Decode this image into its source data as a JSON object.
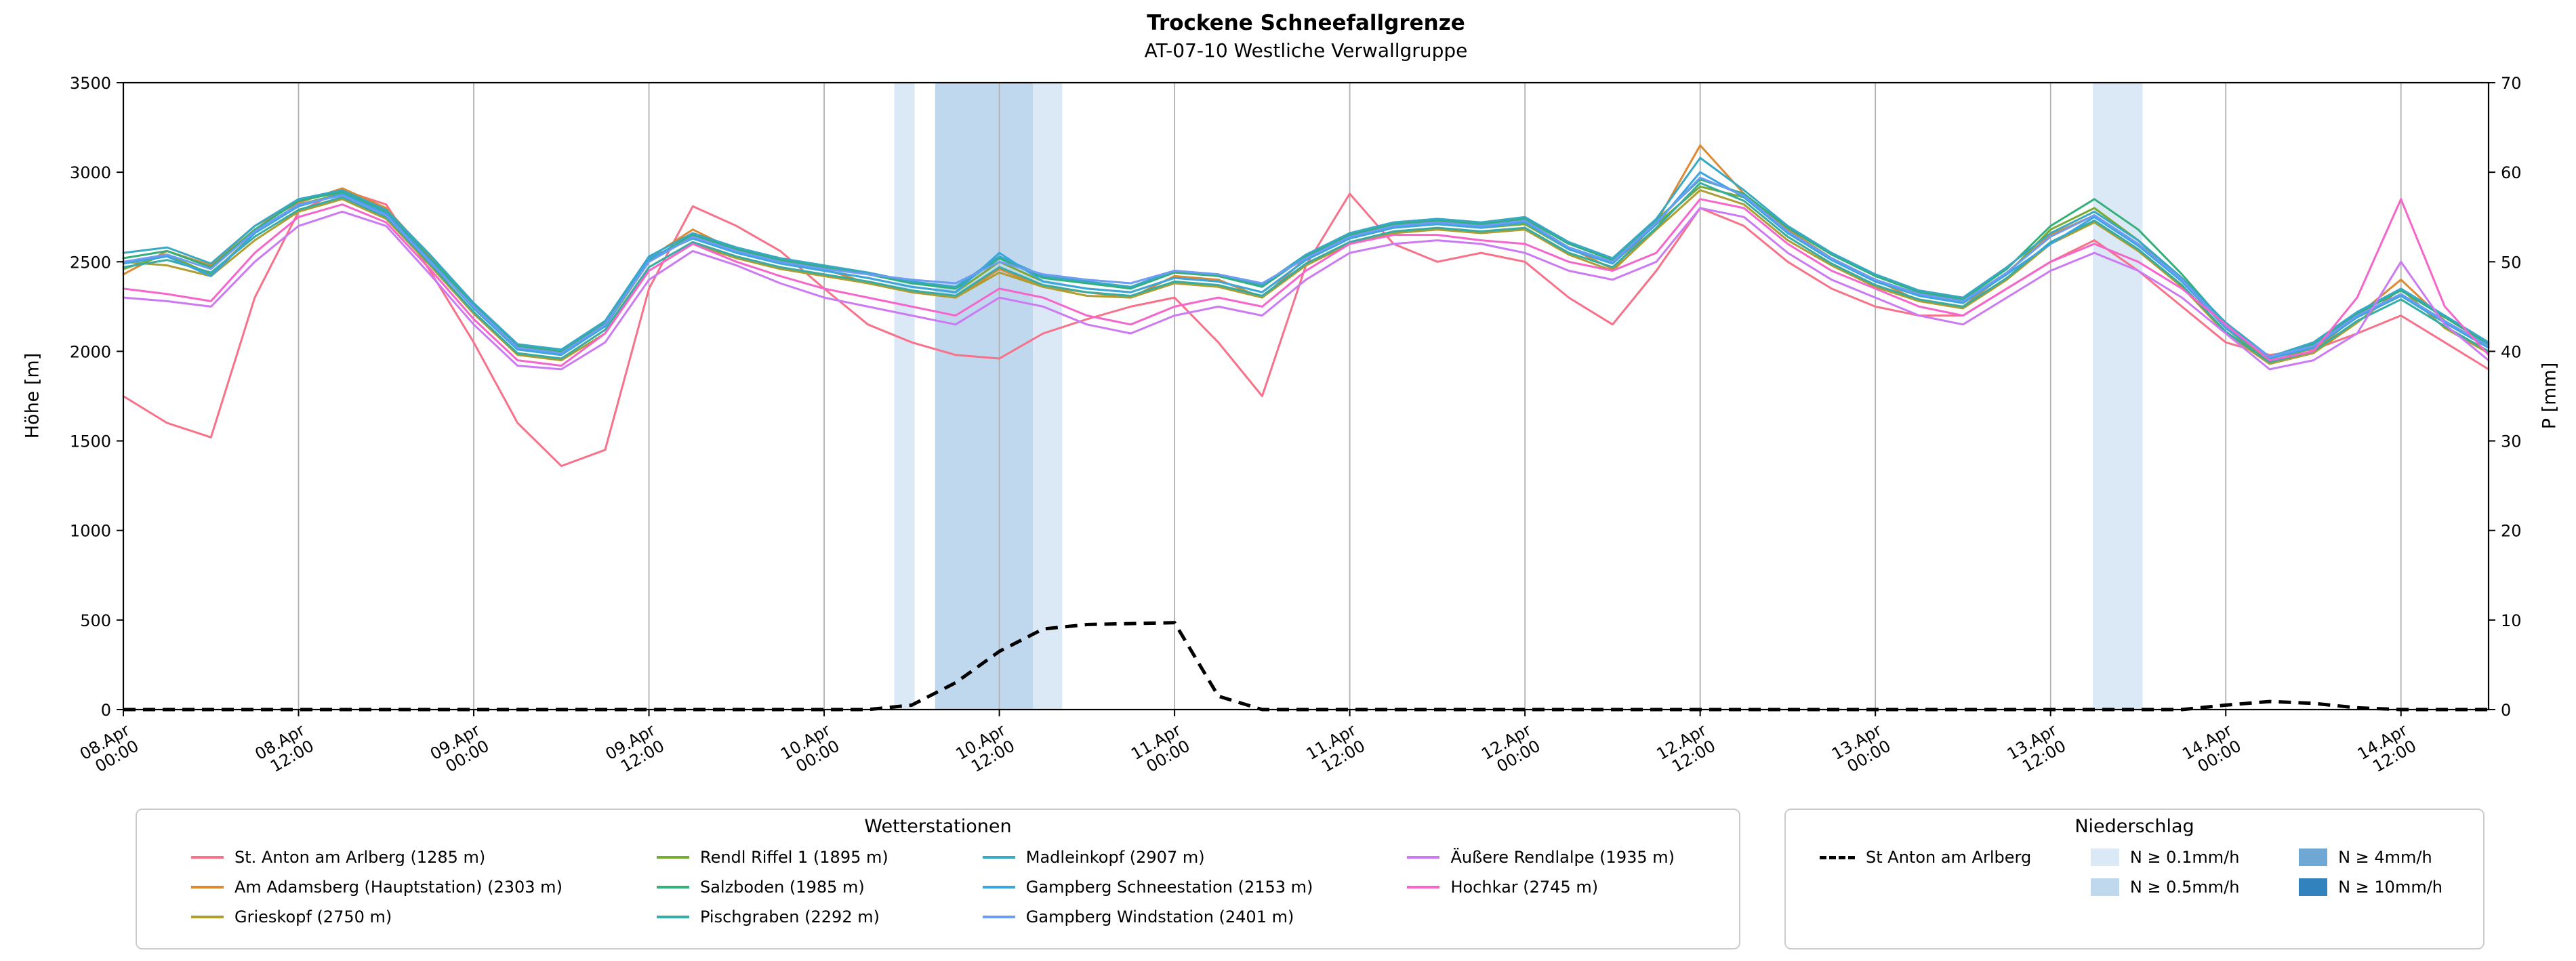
{
  "title": "Trockene Schneefallgrenze",
  "subtitle": "AT-07-10 Westliche Verwallgruppe",
  "axes": {
    "y_left_label": "Höhe [m]",
    "y_right_label": "P [mm]",
    "y_left_range": [
      0,
      3500
    ],
    "y_right_range": [
      0,
      70
    ],
    "y_left_ticks": [
      0,
      500,
      1000,
      1500,
      2000,
      2500,
      3000,
      3500
    ],
    "y_right_ticks": [
      0,
      10,
      20,
      30,
      40,
      50,
      60,
      70
    ],
    "x_range_hours": [
      0,
      162
    ],
    "x_ticks": [
      {
        "hour": 0,
        "label": "08.Apr 00:00"
      },
      {
        "hour": 12,
        "label": "08.Apr 12:00"
      },
      {
        "hour": 24,
        "label": "09.Apr 00:00"
      },
      {
        "hour": 36,
        "label": "09.Apr 12:00"
      },
      {
        "hour": 48,
        "label": "10.Apr 00:00"
      },
      {
        "hour": 60,
        "label": "10.Apr 12:00"
      },
      {
        "hour": 72,
        "label": "11.Apr 00:00"
      },
      {
        "hour": 84,
        "label": "11.Apr 12:00"
      },
      {
        "hour": 96,
        "label": "12.Apr 00:00"
      },
      {
        "hour": 108,
        "label": "12.Apr 12:00"
      },
      {
        "hour": 120,
        "label": "13.Apr 00:00"
      },
      {
        "hour": 132,
        "label": "13.Apr 12:00"
      },
      {
        "hour": 144,
        "label": "14.Apr 00:00"
      },
      {
        "hour": 156,
        "label": "14.Apr 12:00"
      }
    ]
  },
  "legend_stations": {
    "title": "Wetterstationen"
  },
  "legend_precip": {
    "title": "Niederschlag",
    "line_label": "St Anton am Arlberg",
    "levels": [
      {
        "label": "N ≥ 0.1mm/h",
        "color": "#dbe9f6"
      },
      {
        "label": "N ≥ 0.5mm/h",
        "color": "#c0d8ee"
      },
      {
        "label": "N ≥ 4mm/h",
        "color": "#6fa8d4"
      },
      {
        "label": "N ≥ 10mm/h",
        "color": "#3282bd"
      }
    ]
  },
  "chart_data": {
    "type": "line",
    "x_unit": "hours since 08.Apr 00:00",
    "x_hours": [
      0,
      3,
      6,
      9,
      12,
      15,
      18,
      21,
      24,
      27,
      30,
      33,
      36,
      39,
      42,
      45,
      48,
      51,
      54,
      57,
      60,
      63,
      66,
      69,
      72,
      75,
      78,
      81,
      84,
      87,
      90,
      93,
      96,
      99,
      102,
      105,
      108,
      111,
      114,
      117,
      120,
      123,
      126,
      129,
      132,
      135,
      138,
      141,
      144,
      147,
      150,
      153,
      156,
      159,
      162
    ],
    "series": [
      {
        "name": "St. Anton am Arlberg (1285 m)",
        "color": "#f77189",
        "values": [
          1750,
          1600,
          1520,
          2300,
          2780,
          2900,
          2820,
          2450,
          2050,
          1600,
          1360,
          1450,
          2350,
          2810,
          2700,
          2560,
          2350,
          2150,
          2050,
          1980,
          1960,
          2100,
          2180,
          2250,
          2300,
          2050,
          1750,
          2480,
          2880,
          2600,
          2500,
          2550,
          2500,
          2300,
          2150,
          2450,
          2800,
          2700,
          2500,
          2350,
          2250,
          2200,
          2200,
          2350,
          2500,
          2620,
          2450,
          2250,
          2050,
          1980,
          2010,
          2100,
          2200,
          2050,
          1900
        ]
      },
      {
        "name": "Am Adamsberg (Hauptstation) (2303 m)",
        "color": "#dc8932",
        "values": [
          2430,
          2560,
          2480,
          2700,
          2830,
          2910,
          2800,
          2530,
          2260,
          2030,
          1990,
          2160,
          2520,
          2680,
          2560,
          2500,
          2460,
          2380,
          2330,
          2300,
          2460,
          2360,
          2330,
          2300,
          2420,
          2400,
          2300,
          2520,
          2650,
          2700,
          2720,
          2700,
          2730,
          2580,
          2460,
          2720,
          3150,
          2880,
          2680,
          2520,
          2400,
          2280,
          2250,
          2440,
          2650,
          2760,
          2600,
          2400,
          2140,
          1930,
          2000,
          2200,
          2400,
          2170,
          2030
        ]
      },
      {
        "name": "Grieskopf (2750 m)",
        "color": "#ae9d31",
        "values": [
          2500,
          2480,
          2420,
          2620,
          2780,
          2850,
          2740,
          2480,
          2210,
          1980,
          1950,
          2100,
          2450,
          2600,
          2520,
          2460,
          2420,
          2380,
          2330,
          2300,
          2440,
          2360,
          2310,
          2300,
          2380,
          2360,
          2300,
          2480,
          2600,
          2660,
          2680,
          2660,
          2680,
          2540,
          2450,
          2680,
          2900,
          2820,
          2620,
          2480,
          2360,
          2280,
          2240,
          2400,
          2600,
          2720,
          2560,
          2360,
          2100,
          1930,
          1990,
          2160,
          2350,
          2130,
          1990
        ]
      },
      {
        "name": "Rendl Riffel 1 (1895 m)",
        "color": "#77ab31",
        "values": [
          2460,
          2540,
          2430,
          2660,
          2820,
          2880,
          2770,
          2510,
          2240,
          2010,
          1980,
          2140,
          2500,
          2640,
          2550,
          2490,
          2450,
          2410,
          2360,
          2330,
          2500,
          2390,
          2350,
          2330,
          2410,
          2390,
          2330,
          2510,
          2630,
          2690,
          2710,
          2690,
          2710,
          2570,
          2490,
          2710,
          2920,
          2860,
          2660,
          2510,
          2390,
          2310,
          2270,
          2430,
          2680,
          2800,
          2620,
          2390,
          2130,
          1940,
          2020,
          2190,
          2310,
          2160,
          2020
        ]
      },
      {
        "name": "Salzboden (1985 m)",
        "color": "#33b07a",
        "values": [
          2520,
          2560,
          2470,
          2680,
          2840,
          2890,
          2780,
          2520,
          2260,
          2030,
          2000,
          2160,
          2510,
          2650,
          2570,
          2510,
          2470,
          2430,
          2380,
          2350,
          2520,
          2410,
          2380,
          2350,
          2440,
          2420,
          2360,
          2530,
          2650,
          2710,
          2730,
          2710,
          2740,
          2600,
          2510,
          2730,
          2960,
          2880,
          2690,
          2540,
          2420,
          2330,
          2290,
          2460,
          2700,
          2850,
          2680,
          2430,
          2150,
          1960,
          2040,
          2210,
          2340,
          2190,
          2040
        ]
      },
      {
        "name": "Pischgraben (2292 m)",
        "color": "#36ada4",
        "values": [
          2470,
          2510,
          2440,
          2640,
          2790,
          2860,
          2750,
          2490,
          2220,
          1990,
          1960,
          2120,
          2470,
          2610,
          2530,
          2470,
          2430,
          2390,
          2340,
          2310,
          2470,
          2370,
          2330,
          2310,
          2390,
          2370,
          2310,
          2490,
          2610,
          2670,
          2690,
          2670,
          2690,
          2550,
          2470,
          2690,
          2940,
          2840,
          2640,
          2490,
          2370,
          2290,
          2250,
          2410,
          2610,
          2730,
          2570,
          2370,
          2110,
          1940,
          2000,
          2170,
          2290,
          2140,
          2000
        ]
      },
      {
        "name": "Madleinkopf (2907 m)",
        "color": "#38a9c5",
        "values": [
          2550,
          2580,
          2490,
          2700,
          2850,
          2900,
          2790,
          2540,
          2270,
          2040,
          2010,
          2170,
          2530,
          2660,
          2580,
          2520,
          2480,
          2440,
          2390,
          2360,
          2530,
          2420,
          2390,
          2360,
          2450,
          2430,
          2370,
          2540,
          2660,
          2720,
          2740,
          2720,
          2750,
          2610,
          2520,
          2740,
          3080,
          2900,
          2700,
          2550,
          2430,
          2340,
          2300,
          2470,
          2660,
          2780,
          2620,
          2410,
          2160,
          1970,
          2050,
          2220,
          2350,
          2200,
          2050
        ]
      },
      {
        "name": "Gampberg Schneestation (2153 m)",
        "color": "#3aa5df",
        "values": [
          2490,
          2530,
          2420,
          2660,
          2810,
          2880,
          2770,
          2510,
          2240,
          2010,
          1980,
          2140,
          2520,
          2630,
          2550,
          2490,
          2450,
          2410,
          2360,
          2330,
          2550,
          2390,
          2350,
          2330,
          2410,
          2390,
          2330,
          2510,
          2630,
          2690,
          2710,
          2690,
          2720,
          2570,
          2490,
          2710,
          3000,
          2860,
          2660,
          2510,
          2390,
          2310,
          2270,
          2430,
          2600,
          2750,
          2590,
          2390,
          2130,
          1960,
          2020,
          2190,
          2310,
          2160,
          2020
        ]
      },
      {
        "name": "Gampberg Windstation (2401 m)",
        "color": "#6e9bf4",
        "values": [
          2500,
          2540,
          2460,
          2670,
          2820,
          2870,
          2760,
          2500,
          2250,
          2020,
          1990,
          2150,
          2500,
          2640,
          2560,
          2500,
          2460,
          2430,
          2400,
          2380,
          2500,
          2430,
          2400,
          2380,
          2450,
          2430,
          2380,
          2520,
          2640,
          2700,
          2720,
          2700,
          2730,
          2580,
          2500,
          2720,
          2970,
          2870,
          2670,
          2520,
          2400,
          2320,
          2280,
          2440,
          2640,
          2760,
          2600,
          2400,
          2140,
          1970,
          2030,
          2200,
          2320,
          2170,
          2030
        ]
      },
      {
        "name": "Äußere Rendlalpe (1935 m)",
        "color": "#cc7af4",
        "values": [
          2300,
          2280,
          2250,
          2500,
          2700,
          2780,
          2700,
          2430,
          2150,
          1920,
          1900,
          2050,
          2400,
          2560,
          2480,
          2380,
          2300,
          2250,
          2200,
          2150,
          2300,
          2250,
          2150,
          2100,
          2200,
          2250,
          2200,
          2400,
          2550,
          2600,
          2620,
          2600,
          2550,
          2450,
          2400,
          2500,
          2800,
          2750,
          2550,
          2400,
          2300,
          2200,
          2150,
          2300,
          2450,
          2550,
          2450,
          2300,
          2100,
          1900,
          1950,
          2100,
          2500,
          2150,
          1950
        ]
      },
      {
        "name": "Hochkar (2745 m)",
        "color": "#f565cc",
        "values": [
          2350,
          2320,
          2280,
          2550,
          2750,
          2820,
          2720,
          2460,
          2180,
          1950,
          1920,
          2100,
          2450,
          2600,
          2500,
          2420,
          2350,
          2300,
          2250,
          2200,
          2350,
          2300,
          2200,
          2150,
          2250,
          2300,
          2250,
          2450,
          2600,
          2650,
          2650,
          2620,
          2600,
          2500,
          2450,
          2550,
          2850,
          2800,
          2600,
          2450,
          2350,
          2250,
          2200,
          2350,
          2500,
          2600,
          2500,
          2350,
          2150,
          1950,
          2000,
          2300,
          2850,
          2250,
          1980
        ]
      }
    ],
    "precipitation_series": {
      "name": "St Anton am Arlberg",
      "axis": "right",
      "unit": "mm",
      "style": "dashed",
      "color": "#000000",
      "values": [
        0,
        0,
        0,
        0,
        0,
        0,
        0,
        0,
        0,
        0,
        0,
        0,
        0,
        0,
        0,
        0,
        0,
        0,
        0.5,
        3,
        6.5,
        9,
        9.5,
        9.6,
        9.7,
        1.5,
        0,
        0,
        0,
        0,
        0,
        0,
        0,
        0,
        0,
        0,
        0,
        0,
        0,
        0,
        0,
        0,
        0,
        0,
        0,
        0,
        0,
        0,
        0.5,
        0.9,
        0.7,
        0.2,
        0,
        0,
        0
      ]
    },
    "precip_bands": [
      {
        "start_hour": 52.8,
        "end_hour": 54.2,
        "level": "N ≥ 0.1mm/h"
      },
      {
        "start_hour": 55.6,
        "end_hour": 62.3,
        "level": "N ≥ 0.5mm/h"
      },
      {
        "start_hour": 62.3,
        "end_hour": 64.3,
        "level": "N ≥ 0.1mm/h"
      },
      {
        "start_hour": 134.9,
        "end_hour": 138.3,
        "level": "N ≥ 0.1mm/h"
      }
    ]
  }
}
